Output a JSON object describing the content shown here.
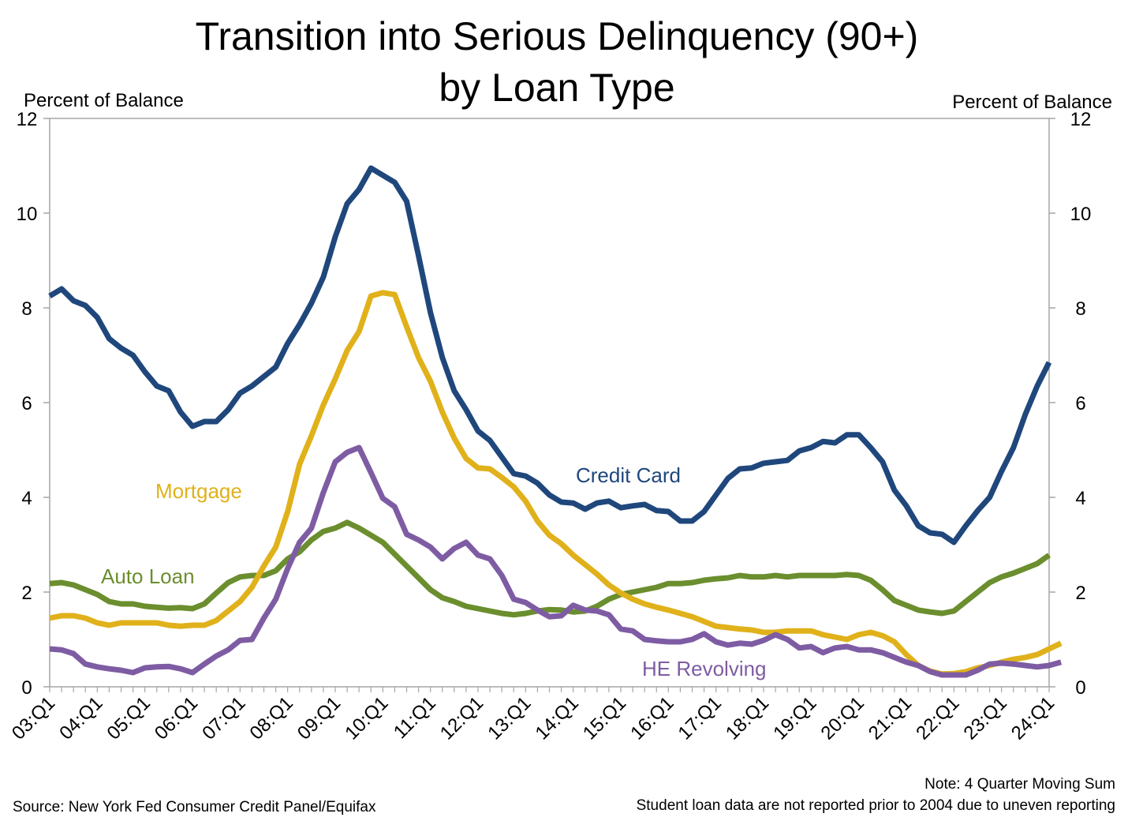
{
  "chart_data": {
    "type": "line",
    "title_line1": "Transition into Serious Delinquency (90+)",
    "title_line2": "by Loan Type",
    "ylabel_left": "Percent of Balance",
    "ylabel_right": "Percent of Balance",
    "ylim": [
      0,
      12
    ],
    "yticks": [
      0,
      2,
      4,
      6,
      8,
      10,
      12
    ],
    "x_start": "03:Q1",
    "x_end": "24:Q1",
    "xtick_labels": [
      "03:Q1",
      "04:Q1",
      "05:Q1",
      "06:Q1",
      "07:Q1",
      "08:Q1",
      "09:Q1",
      "10:Q1",
      "11:Q1",
      "12:Q1",
      "13:Q1",
      "14:Q1",
      "15:Q1",
      "16:Q1",
      "17:Q1",
      "18:Q1",
      "19:Q1",
      "20:Q1",
      "21:Q1",
      "22:Q1",
      "23:Q1",
      "24:Q1"
    ],
    "source": "Source: New York Fed Consumer Credit Panel/Equifax",
    "note1": "Note: 4 Quarter Moving Sum",
    "note2": "Student loan data are not reported prior to 2004 due to uneven reporting",
    "series": [
      {
        "name": "Credit Card",
        "color": "#1f477c",
        "values": [
          8.25,
          8.4,
          8.15,
          8.05,
          7.8,
          7.35,
          7.15,
          7.0,
          6.65,
          6.35,
          6.25,
          5.8,
          5.5,
          5.6,
          5.6,
          5.85,
          6.2,
          6.35,
          6.55,
          6.75,
          7.25,
          7.65,
          8.1,
          8.65,
          9.5,
          10.2,
          10.5,
          10.95,
          10.8,
          10.65,
          10.25,
          9.1,
          7.9,
          6.95,
          6.25,
          5.85,
          5.4,
          5.2,
          4.85,
          4.5,
          4.45,
          4.3,
          4.05,
          3.9,
          3.88,
          3.75,
          3.88,
          3.92,
          3.78,
          3.82,
          3.85,
          3.72,
          3.7,
          3.5,
          3.5,
          3.7,
          4.05,
          4.4,
          4.6,
          4.62,
          4.72,
          4.75,
          4.78,
          4.98,
          5.05,
          5.18,
          5.15,
          5.32,
          5.32,
          5.05,
          4.75,
          4.15,
          3.82,
          3.4,
          3.25,
          3.22,
          3.05,
          3.4,
          3.72,
          4.0,
          4.55,
          5.05,
          5.75,
          6.35,
          6.85
        ]
      },
      {
        "name": "Mortgage",
        "color": "#e0b11a",
        "values": [
          1.45,
          1.5,
          1.5,
          1.45,
          1.35,
          1.3,
          1.35,
          1.35,
          1.35,
          1.35,
          1.3,
          1.28,
          1.3,
          1.3,
          1.4,
          1.6,
          1.8,
          2.1,
          2.55,
          2.95,
          3.7,
          4.7,
          5.3,
          5.95,
          6.5,
          7.1,
          7.5,
          8.25,
          8.32,
          8.28,
          7.6,
          6.95,
          6.45,
          5.8,
          5.25,
          4.82,
          4.62,
          4.6,
          4.42,
          4.22,
          3.92,
          3.5,
          3.2,
          3.02,
          2.78,
          2.58,
          2.38,
          2.15,
          1.98,
          1.85,
          1.75,
          1.68,
          1.62,
          1.55,
          1.48,
          1.38,
          1.28,
          1.25,
          1.22,
          1.2,
          1.15,
          1.15,
          1.18,
          1.18,
          1.18,
          1.1,
          1.05,
          1.0,
          1.1,
          1.15,
          1.08,
          0.95,
          0.68,
          0.45,
          0.33,
          0.27,
          0.28,
          0.32,
          0.4,
          0.45,
          0.52,
          0.58,
          0.62,
          0.68,
          0.8,
          0.92
        ]
      },
      {
        "name": "Auto Loan",
        "color": "#6b8e2e",
        "values": [
          2.18,
          2.2,
          2.15,
          2.05,
          1.95,
          1.8,
          1.75,
          1.75,
          1.7,
          1.68,
          1.66,
          1.67,
          1.65,
          1.75,
          1.98,
          2.2,
          2.32,
          2.35,
          2.35,
          2.45,
          2.7,
          2.85,
          3.1,
          3.28,
          3.35,
          3.47,
          3.35,
          3.2,
          3.05,
          2.8,
          2.55,
          2.3,
          2.05,
          1.88,
          1.8,
          1.7,
          1.65,
          1.6,
          1.55,
          1.52,
          1.55,
          1.6,
          1.63,
          1.62,
          1.58,
          1.6,
          1.7,
          1.85,
          1.95,
          2.0,
          2.05,
          2.1,
          2.18,
          2.18,
          2.2,
          2.25,
          2.28,
          2.3,
          2.35,
          2.32,
          2.32,
          2.35,
          2.32,
          2.35,
          2.35,
          2.35,
          2.35,
          2.37,
          2.35,
          2.25,
          2.05,
          1.82,
          1.72,
          1.62,
          1.58,
          1.55,
          1.6,
          1.8,
          2.0,
          2.2,
          2.32,
          2.4,
          2.5,
          2.6,
          2.78
        ]
      },
      {
        "name": "HE Revolving",
        "color": "#7e5ca3",
        "values": [
          0.8,
          0.78,
          0.7,
          0.48,
          0.42,
          0.38,
          0.35,
          0.3,
          0.4,
          0.42,
          0.43,
          0.38,
          0.3,
          0.48,
          0.65,
          0.78,
          0.98,
          1.0,
          1.45,
          1.85,
          2.5,
          3.05,
          3.35,
          4.1,
          4.75,
          4.95,
          5.05,
          4.52,
          3.98,
          3.8,
          3.22,
          3.1,
          2.95,
          2.7,
          2.92,
          3.05,
          2.78,
          2.7,
          2.35,
          1.85,
          1.78,
          1.62,
          1.48,
          1.5,
          1.72,
          1.62,
          1.6,
          1.52,
          1.22,
          1.18,
          1.0,
          0.97,
          0.95,
          0.95,
          1.0,
          1.12,
          0.95,
          0.88,
          0.92,
          0.9,
          0.98,
          1.1,
          1.0,
          0.82,
          0.85,
          0.72,
          0.82,
          0.85,
          0.78,
          0.78,
          0.72,
          0.62,
          0.52,
          0.45,
          0.32,
          0.25,
          0.25,
          0.25,
          0.35,
          0.48,
          0.5,
          0.48,
          0.45,
          0.42,
          0.45,
          0.52
        ]
      }
    ],
    "series_labels": [
      {
        "name": "Credit Card",
        "color": "#1f477c"
      },
      {
        "name": "Mortgage",
        "color": "#e0b11a"
      },
      {
        "name": "Auto Loan",
        "color": "#6b8e2e"
      },
      {
        "name": "HE Revolving",
        "color": "#7e5ca3"
      }
    ]
  }
}
